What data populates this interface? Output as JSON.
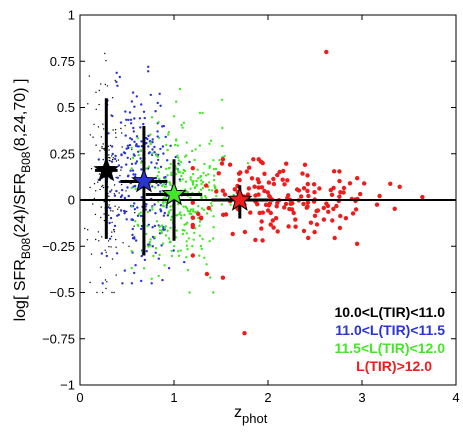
{
  "chart_data": {
    "type": "scatter",
    "title": "",
    "xlabel": "z",
    "xlabel_sub": "phot",
    "ylabel": {
      "pre": "log[ SFR",
      "sub1": "B08",
      "mid": "(24)/SFR",
      "sub2": "B08",
      "post": "(8,24,70) ]"
    },
    "xlim": [
      0,
      4
    ],
    "ylim": [
      -1,
      1
    ],
    "xticks": [
      0,
      1,
      2,
      3,
      4
    ],
    "xtick_labels": [
      "0",
      "1",
      "2",
      "3",
      "4"
    ],
    "yticks": [
      -1,
      -0.75,
      -0.5,
      -0.25,
      0,
      0.25,
      0.5,
      0.75,
      1
    ],
    "ytick_labels": [
      "−1",
      "−0.75",
      "−0.5",
      "−0.25",
      "0",
      "0.25",
      "0.5",
      "0.75",
      "1"
    ],
    "zero_line": 0,
    "legend_position": "bottom-right",
    "series": [
      {
        "name": "10.0<L(TIR)<11.0",
        "color": "#000000",
        "marker": "dot",
        "cloud": {
          "x_mean": 0.3,
          "x_sd": 0.1,
          "x_min": 0.05,
          "x_max": 0.65,
          "y_mean": 0.12,
          "y_sd": 0.3,
          "y_min": -0.5,
          "y_max": 0.98,
          "n": 160
        },
        "median": {
          "x": 0.28,
          "y": 0.16,
          "xerr_low": 0.12,
          "xerr_high": 0.12,
          "yerr_low": 0.37,
          "yerr_high": 0.39
        }
      },
      {
        "name": "11.0<L(TIR)<11.5",
        "color": "#2a33d6",
        "marker": "dot",
        "cloud": {
          "x_mean": 0.62,
          "x_sd": 0.2,
          "x_min": 0.2,
          "x_max": 1.25,
          "y_mean": 0.1,
          "y_sd": 0.25,
          "y_min": -0.45,
          "y_max": 0.72,
          "n": 260
        },
        "median": {
          "x": 0.68,
          "y": 0.1,
          "xerr_low": 0.25,
          "xerr_high": 0.25,
          "yerr_low": 0.4,
          "yerr_high": 0.3
        }
      },
      {
        "name": "11.5<L(TIR)<12.0",
        "color": "#45e62a",
        "marker": "dot",
        "cloud": {
          "x_mean": 1.05,
          "x_sd": 0.25,
          "x_min": 0.55,
          "x_max": 1.8,
          "y_mean": 0.03,
          "y_sd": 0.2,
          "y_min": -0.5,
          "y_max": 0.6,
          "n": 320
        },
        "median": {
          "x": 1.0,
          "y": 0.03,
          "xerr_low": 0.3,
          "xerr_high": 0.3,
          "yerr_low": 0.25,
          "yerr_high": 0.19
        }
      },
      {
        "name": "L(TIR)>12.0",
        "color": "#ee1c1c",
        "marker": "filled-circle",
        "cloud": {
          "x_mean": 2.2,
          "x_sd": 0.5,
          "x_min": 1.2,
          "x_max": 3.85,
          "y_mean": 0.0,
          "y_sd": 0.12,
          "y_min": -0.45,
          "y_max": 0.22,
          "n": 170
        },
        "extra_points": [
          {
            "x": 2.62,
            "y": 0.8
          },
          {
            "x": 1.75,
            "y": -0.72
          },
          {
            "x": 1.52,
            "y": -0.42
          },
          {
            "x": 1.35,
            "y": -0.4
          },
          {
            "x": 1.2,
            "y": -0.3
          }
        ],
        "median": {
          "x": 1.7,
          "y": 0.0,
          "xerr_low": 0.3,
          "xerr_high": 0.3,
          "yerr_low": 0.1,
          "yerr_high": 0.08
        }
      }
    ]
  }
}
